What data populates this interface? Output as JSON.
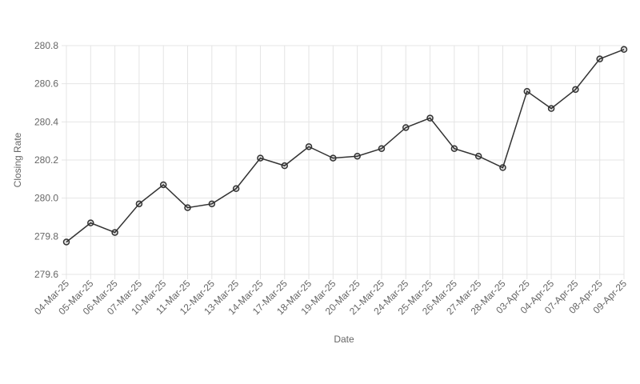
{
  "chart_data": {
    "type": "line",
    "x_label": "Date",
    "y_label": "Closing Rate",
    "categories": [
      "04-Mar-25",
      "05-Mar-25",
      "06-Mar-25",
      "07-Mar-25",
      "10-Mar-25",
      "11-Mar-25",
      "12-Mar-25",
      "13-Mar-25",
      "14-Mar-25",
      "17-Mar-25",
      "18-Mar-25",
      "19-Mar-25",
      "20-Mar-25",
      "21-Mar-25",
      "24-Mar-25",
      "25-Mar-25",
      "26-Mar-25",
      "27-Mar-25",
      "28-Mar-25",
      "03-Apr-25",
      "04-Apr-25",
      "07-Apr-25",
      "08-Apr-25",
      "09-Apr-25"
    ],
    "series": [
      {
        "color": "#333333",
        "values": [
          279.77,
          279.87,
          279.82,
          279.97,
          280.07,
          279.95,
          279.97,
          280.05,
          280.21,
          280.17,
          280.27,
          280.21,
          280.22,
          280.26,
          280.37,
          280.42,
          280.26,
          280.22,
          280.16,
          280.56,
          280.47,
          280.57,
          280.73,
          280.78
        ]
      }
    ],
    "ylim": [
      279.6,
      280.8
    ],
    "yticks": [
      279.6,
      279.8,
      {
        "value": 280,
        "label": "280.0"
      },
      280.2,
      280.4,
      280.6,
      280.8
    ],
    "grid": true
  }
}
